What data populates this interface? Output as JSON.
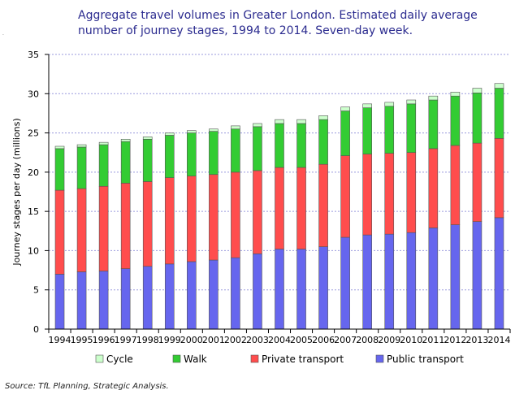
{
  "title": "Aggregate travel volumes in Greater London. Estimated daily average\nnumber of journey stages, 1994 to 2014. Seven-day week.",
  "source": "Source: TfL Planning, Strategic Analysis.",
  "colors": {
    "cycle": "#ccffcc",
    "walk": "#33cc33",
    "private": "#ff4d4d",
    "public": "#6666ee",
    "grid": "#9999dd"
  },
  "chart_data": {
    "type": "bar",
    "stacked": true,
    "categories": [
      "1994",
      "1995",
      "1996",
      "1997",
      "1998",
      "1999",
      "2000",
      "2001",
      "2002",
      "2003",
      "2004",
      "2005",
      "2006",
      "2007",
      "2008",
      "2009",
      "2010",
      "2011",
      "2012",
      "2013",
      "2014"
    ],
    "series": [
      {
        "name": "Public transport",
        "key": "public",
        "values": [
          7.0,
          7.3,
          7.4,
          7.7,
          8.0,
          8.3,
          8.6,
          8.8,
          9.1,
          9.6,
          10.2,
          10.2,
          10.5,
          11.7,
          12.0,
          12.1,
          12.3,
          12.9,
          13.3,
          13.7,
          14.2
        ]
      },
      {
        "name": "Private transport",
        "key": "private",
        "values": [
          10.7,
          10.6,
          10.8,
          10.9,
          10.8,
          11.0,
          10.9,
          10.9,
          10.9,
          10.6,
          10.4,
          10.4,
          10.5,
          10.4,
          10.3,
          10.3,
          10.2,
          10.1,
          10.1,
          10.0,
          10.1
        ]
      },
      {
        "name": "Walk",
        "key": "walk",
        "values": [
          5.3,
          5.3,
          5.3,
          5.3,
          5.4,
          5.4,
          5.5,
          5.5,
          5.5,
          5.6,
          5.6,
          5.6,
          5.7,
          5.7,
          5.9,
          6.0,
          6.2,
          6.2,
          6.3,
          6.4,
          6.4
        ]
      },
      {
        "name": "Cycle",
        "key": "cycle",
        "values": [
          0.3,
          0.3,
          0.3,
          0.3,
          0.3,
          0.3,
          0.3,
          0.3,
          0.4,
          0.4,
          0.5,
          0.5,
          0.5,
          0.5,
          0.5,
          0.5,
          0.5,
          0.5,
          0.5,
          0.6,
          0.6
        ]
      }
    ],
    "legend": [
      {
        "name": "Cycle",
        "key": "cycle"
      },
      {
        "name": "Walk",
        "key": "walk"
      },
      {
        "name": "Private transport",
        "key": "private"
      },
      {
        "name": "Public transport",
        "key": "public"
      }
    ],
    "legend_position": "bottom",
    "ylabel": "Journey stages per day (millions)",
    "xlabel": "",
    "ylim": [
      0,
      35
    ],
    "yticks": [
      0,
      5,
      10,
      15,
      20,
      25,
      30,
      35
    ],
    "grid": true
  }
}
